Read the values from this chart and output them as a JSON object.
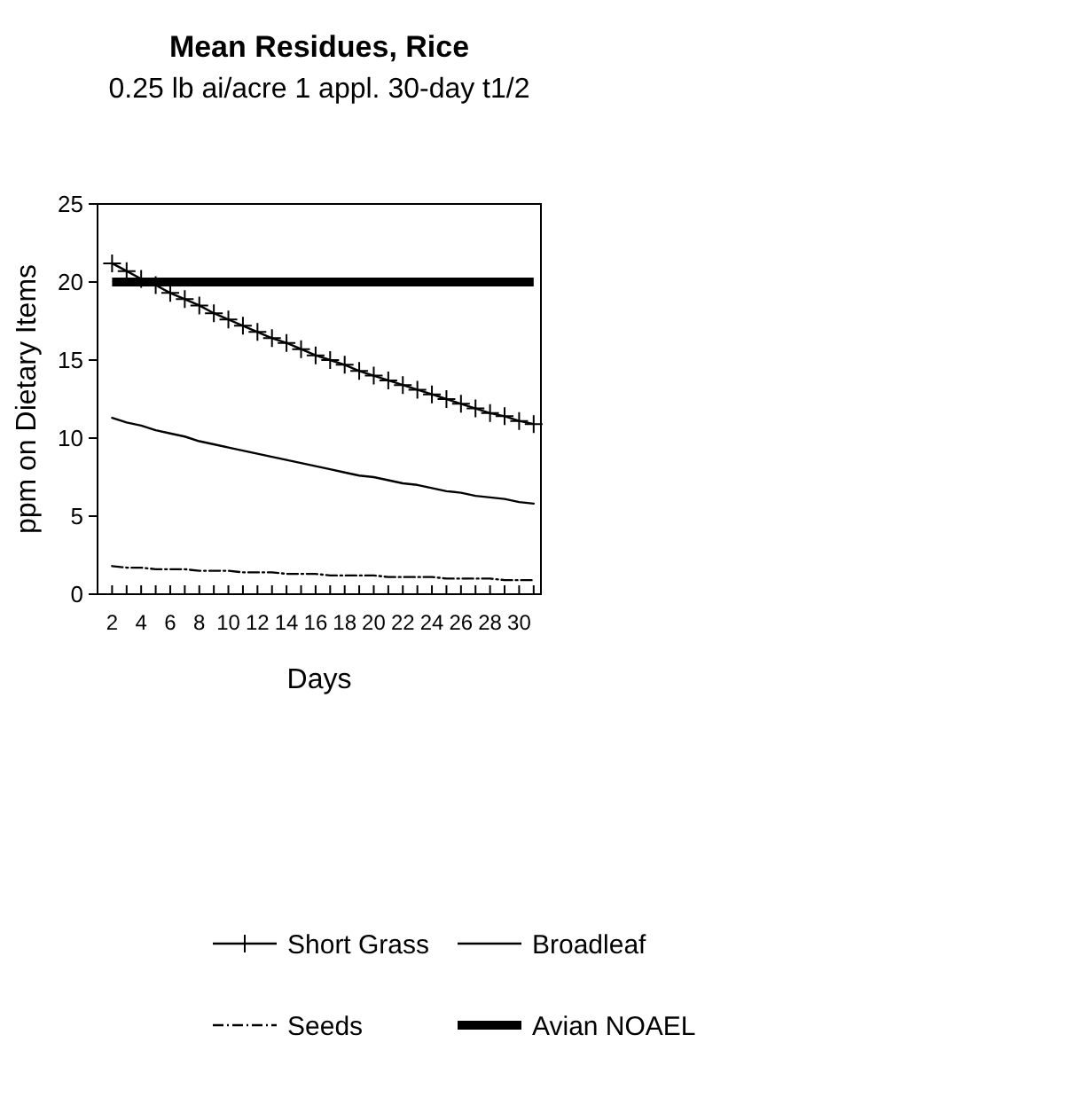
{
  "chart_data": {
    "type": "line",
    "title": "Mean Residues, Rice",
    "subtitle": "0.25 lb ai/acre 1 appl. 30-day t1/2",
    "xlabel": "Days",
    "ylabel": "ppm on Dietary Items",
    "x": [
      2,
      3,
      4,
      5,
      6,
      7,
      8,
      9,
      10,
      11,
      12,
      13,
      14,
      15,
      16,
      17,
      18,
      19,
      20,
      21,
      22,
      23,
      24,
      25,
      26,
      27,
      28,
      29,
      30,
      31
    ],
    "xlim": [
      1,
      31.5
    ],
    "xticks": [
      2,
      {
        "value": 3,
        "label": null
      },
      4,
      {
        "value": 5,
        "label": null
      },
      6,
      {
        "value": 7,
        "label": null
      },
      8,
      {
        "value": 9,
        "label": null
      },
      10,
      {
        "value": 11,
        "label": null
      },
      12,
      {
        "value": 13,
        "label": null
      },
      14,
      {
        "value": 15,
        "label": null
      },
      16,
      {
        "value": 17,
        "label": null
      },
      18,
      {
        "value": 19,
        "label": null
      },
      20,
      {
        "value": 21,
        "label": null
      },
      22,
      {
        "value": 23,
        "label": null
      },
      24,
      {
        "value": 25,
        "label": null
      },
      26,
      {
        "value": 27,
        "label": null
      },
      28,
      {
        "value": 29,
        "label": null
      },
      30,
      {
        "value": 31,
        "label": null
      }
    ],
    "ylim": [
      0,
      25
    ],
    "yticks": [
      0,
      5,
      10,
      15,
      20,
      25
    ],
    "grid": false,
    "legend": "bottom",
    "series": [
      {
        "name": "Short Grass",
        "color": "#000000",
        "marker": "cross",
        "line_style": "solid",
        "values": [
          21.2,
          20.7,
          20.2,
          19.8,
          19.3,
          18.9,
          18.5,
          18.0,
          17.6,
          17.2,
          16.8,
          16.4,
          16.1,
          15.7,
          15.3,
          15.0,
          14.7,
          14.3,
          14.0,
          13.7,
          13.4,
          13.1,
          12.8,
          12.5,
          12.2,
          11.9,
          11.6,
          11.4,
          11.1,
          10.9
        ]
      },
      {
        "name": "Broadleaf",
        "color": "#000000",
        "marker": "none",
        "line_style": "solid",
        "values": [
          11.3,
          11.0,
          10.8,
          10.5,
          10.3,
          10.1,
          9.8,
          9.6,
          9.4,
          9.2,
          9.0,
          8.8,
          8.6,
          8.4,
          8.2,
          8.0,
          7.8,
          7.6,
          7.5,
          7.3,
          7.1,
          7.0,
          6.8,
          6.6,
          6.5,
          6.3,
          6.2,
          6.1,
          5.9,
          5.8
        ]
      },
      {
        "name": "Seeds",
        "color": "#000000",
        "marker": "none",
        "line_style": "dashed",
        "values": [
          1.8,
          1.7,
          1.7,
          1.6,
          1.6,
          1.6,
          1.5,
          1.5,
          1.5,
          1.4,
          1.4,
          1.4,
          1.3,
          1.3,
          1.3,
          1.2,
          1.2,
          1.2,
          1.2,
          1.1,
          1.1,
          1.1,
          1.1,
          1.0,
          1.0,
          1.0,
          1.0,
          0.9,
          0.9,
          0.9
        ]
      }
    ],
    "ref_lines": [
      {
        "axis": "y",
        "value": 20,
        "label": "Avian NOAEL",
        "color": "#000000",
        "line_style": "solid"
      }
    ]
  }
}
